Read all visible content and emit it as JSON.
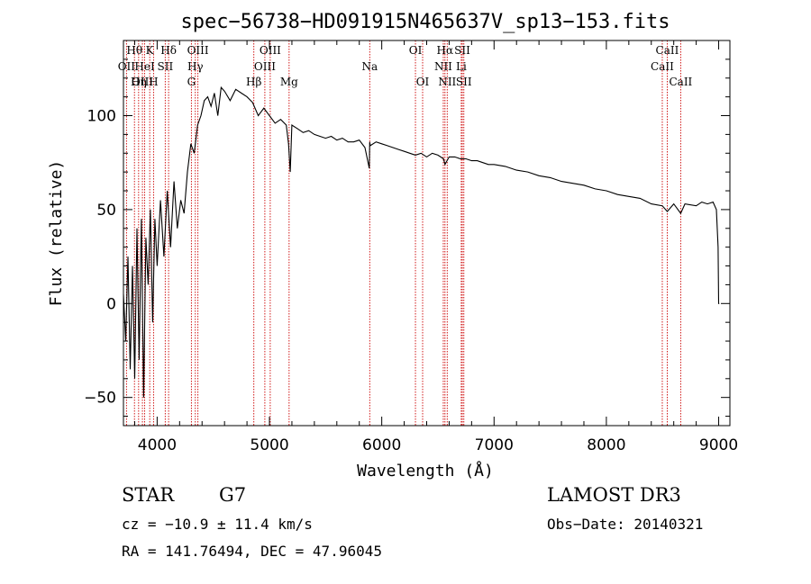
{
  "chart_data": {
    "type": "line",
    "title": "spec−56738−HD091915N465637V_sp13−153.fits",
    "xlabel": "Wavelength (Å)",
    "ylabel": "Flux (relative)",
    "xlim": [
      3700,
      9100
    ],
    "ylim": [
      -65,
      140
    ],
    "x_ticks": [
      4000,
      5000,
      6000,
      7000,
      8000,
      9000
    ],
    "y_ticks": [
      -50,
      0,
      50,
      100
    ],
    "grid": false,
    "series": [
      {
        "name": "flux",
        "color": "#000000",
        "x": [
          3700,
          3720,
          3740,
          3760,
          3780,
          3800,
          3820,
          3840,
          3860,
          3880,
          3900,
          3920,
          3940,
          3960,
          3980,
          4000,
          4030,
          4060,
          4090,
          4120,
          4150,
          4180,
          4210,
          4240,
          4270,
          4300,
          4330,
          4360,
          4390,
          4420,
          4450,
          4480,
          4510,
          4540,
          4570,
          4600,
          4650,
          4700,
          4750,
          4800,
          4850,
          4900,
          4950,
          5000,
          5050,
          5100,
          5150,
          5170,
          5185,
          5200,
          5250,
          5300,
          5350,
          5400,
          5450,
          5500,
          5550,
          5600,
          5650,
          5700,
          5750,
          5800,
          5850,
          5889,
          5893,
          5897,
          5950,
          6000,
          6050,
          6100,
          6150,
          6200,
          6250,
          6300,
          6350,
          6400,
          6450,
          6500,
          6550,
          6563,
          6600,
          6650,
          6700,
          6750,
          6800,
          6850,
          6900,
          6950,
          7000,
          7100,
          7200,
          7300,
          7400,
          7500,
          7600,
          7700,
          7800,
          7900,
          8000,
          8100,
          8200,
          8300,
          8400,
          8498,
          8542,
          8600,
          8662,
          8700,
          8800,
          8850,
          8900,
          8950,
          8980,
          8995,
          9000,
          9005
        ],
        "y": [
          5,
          -20,
          25,
          -35,
          20,
          -40,
          40,
          -30,
          45,
          -50,
          35,
          10,
          50,
          -10,
          45,
          20,
          55,
          25,
          60,
          30,
          65,
          40,
          55,
          48,
          70,
          85,
          80,
          95,
          100,
          108,
          110,
          105,
          112,
          100,
          115,
          113,
          108,
          114,
          112,
          110,
          107,
          100,
          104,
          100,
          96,
          98,
          95,
          85,
          70,
          95,
          93,
          91,
          92,
          90,
          89,
          88,
          89,
          87,
          88,
          86,
          86,
          87,
          83,
          72,
          86,
          84,
          86,
          85,
          84,
          83,
          82,
          81,
          80,
          79,
          80,
          78,
          80,
          79,
          77,
          74,
          78,
          78,
          77,
          77,
          76,
          76,
          75,
          74,
          74,
          73,
          71,
          70,
          68,
          67,
          65,
          64,
          63,
          61,
          60,
          58,
          57,
          56,
          53,
          52,
          49,
          53,
          48,
          53,
          52,
          54,
          53,
          54,
          50,
          30,
          0,
          0
        ]
      }
    ],
    "line_labels": [
      {
        "name": "Hθ",
        "wavelength": 3798,
        "row": 0
      },
      {
        "name": "OII",
        "wavelength": 3727,
        "row": 1
      },
      {
        "name": "OIII",
        "wavelength": 3869,
        "row": 2
      },
      {
        "name": "K",
        "wavelength": 3934,
        "row": 0
      },
      {
        "name": "HeI",
        "wavelength": 3889,
        "row": 1
      },
      {
        "name": "Hη",
        "wavelength": 3835,
        "row": 2
      },
      {
        "name": "Hδ",
        "wavelength": 4102,
        "row": 0
      },
      {
        "name": "SII",
        "wavelength": 4072,
        "row": 1
      },
      {
        "name": "H",
        "wavelength": 3968,
        "row": 2
      },
      {
        "name": "OIII",
        "wavelength": 4363,
        "row": 0
      },
      {
        "name": "Hγ",
        "wavelength": 4340,
        "row": 1
      },
      {
        "name": "G",
        "wavelength": 4305,
        "row": 2
      },
      {
        "name": "OIII",
        "wavelength": 5007,
        "row": 0
      },
      {
        "name": "OIII",
        "wavelength": 4959,
        "row": 1
      },
      {
        "name": "Hβ",
        "wavelength": 4861,
        "row": 2
      },
      {
        "name": "Mg",
        "wavelength": 5175,
        "row": 2
      },
      {
        "name": "Na",
        "wavelength": 5893,
        "row": 1
      },
      {
        "name": "OI",
        "wavelength": 6300,
        "row": 0
      },
      {
        "name": "OI",
        "wavelength": 6364,
        "row": 2
      },
      {
        "name": "Hα",
        "wavelength": 6563,
        "row": 0
      },
      {
        "name": "NII",
        "wavelength": 6548,
        "row": 1
      },
      {
        "name": "NII",
        "wavelength": 6583,
        "row": 2
      },
      {
        "name": "SII",
        "wavelength": 6717,
        "row": 0
      },
      {
        "name": "Li",
        "wavelength": 6708,
        "row": 1
      },
      {
        "name": "SII",
        "wavelength": 6731,
        "row": 2
      },
      {
        "name": "CaII",
        "wavelength": 8542,
        "row": 0
      },
      {
        "name": "CaII",
        "wavelength": 8498,
        "row": 1
      },
      {
        "name": "CaII",
        "wavelength": 8662,
        "row": 2
      }
    ],
    "line_marker_color": "#cc0000"
  },
  "info": {
    "object_class": "STAR",
    "subclass": "G7",
    "survey": "LAMOST DR3",
    "redshift": "cz = −10.9 ± 11.4 km/s",
    "obs_date": "Obs−Date: 20140321",
    "coords": "RA = 141.76494, DEC =  47.96045"
  }
}
